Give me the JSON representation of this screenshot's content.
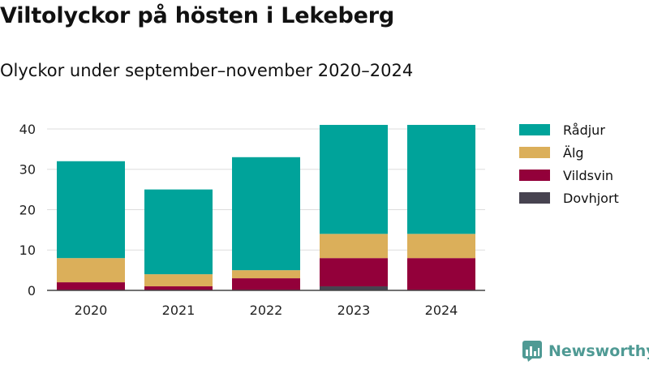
{
  "title": "Viltolyckor på hösten i Lekeberg",
  "subtitle": "Olyckor under september–november 2020–2024",
  "brand": {
    "name": "Newsworthy",
    "color": "#4f9a94"
  },
  "chart_data": {
    "type": "bar",
    "stacked": true,
    "title": "Viltolyckor på hösten i Lekeberg",
    "subtitle": "Olyckor under september–november 2020–2024",
    "xlabel": "",
    "ylabel": "",
    "ylim": [
      0,
      42
    ],
    "yticks": [
      0,
      10,
      20,
      30,
      40
    ],
    "grid": true,
    "legend_position": "right",
    "categories": [
      "2020",
      "2021",
      "2022",
      "2023",
      "2024"
    ],
    "series": [
      {
        "name": "Dovhjort",
        "color": "#474350",
        "values": [
          0,
          0,
          0,
          1,
          0
        ]
      },
      {
        "name": "Vildsvin",
        "color": "#93003a",
        "values": [
          2,
          1,
          3,
          7,
          8
        ]
      },
      {
        "name": "Älg",
        "color": "#dbaf5a",
        "values": [
          6,
          3,
          2,
          6,
          6
        ]
      },
      {
        "name": "Rådjur",
        "color": "#00a39a",
        "values": [
          24,
          21,
          28,
          27,
          27
        ]
      }
    ],
    "legend_order": [
      "Rådjur",
      "Älg",
      "Vildsvin",
      "Dovhjort"
    ]
  }
}
